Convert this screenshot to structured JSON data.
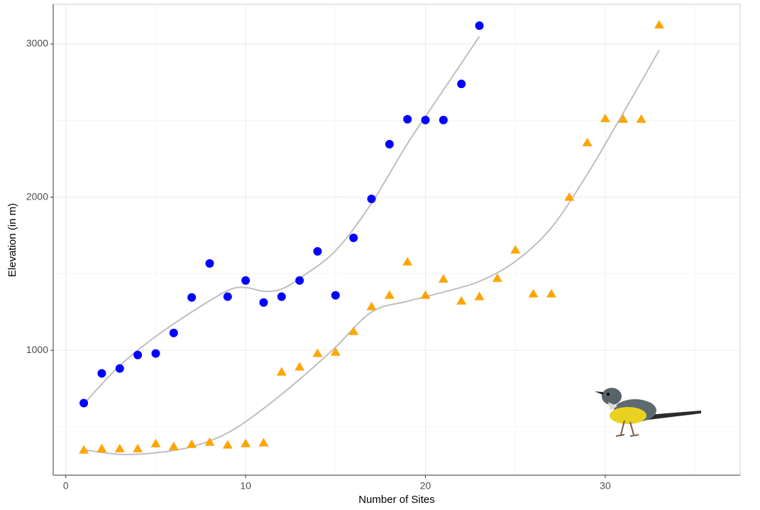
{
  "chart_data": {
    "type": "scatter",
    "x_label": "Number of Sites",
    "y_label": "Elevation (in m)",
    "xlim": [
      -0.7,
      37.5
    ],
    "ylim": [
      184,
      3260
    ],
    "xticks": [
      0,
      10,
      20,
      30
    ],
    "yticks": [
      1000,
      2000,
      3000
    ],
    "minor_xticks": [
      5,
      15,
      25,
      35
    ],
    "minor_yticks": [
      500,
      1500,
      2500
    ],
    "grid": true,
    "series": [
      {
        "color": "#0000ff",
        "marker": "circle",
        "x": [
          1,
          2,
          3,
          4,
          5,
          6,
          7,
          8,
          9,
          10,
          11,
          12,
          13,
          14,
          15,
          16,
          17,
          18,
          19,
          20,
          21,
          22,
          23
        ],
        "values": [
          655,
          849,
          881,
          969,
          979,
          1113,
          1345,
          1567,
          1350,
          1456,
          1312,
          1350,
          1456,
          1646,
          1359,
          1734,
          1989,
          2346,
          2509,
          2504,
          2504,
          2740,
          3120
        ],
        "trend": {
          "x": [
            1,
            3,
            5,
            7,
            9,
            10,
            11,
            12,
            13,
            15,
            17,
            19,
            21,
            23
          ],
          "values": [
            650,
            900,
            1090,
            1250,
            1390,
            1410,
            1385,
            1400,
            1470,
            1650,
            1960,
            2350,
            2700,
            3050
          ]
        }
      },
      {
        "color": "#ffa500",
        "marker": "triangle",
        "x": [
          1,
          2,
          3,
          4,
          5,
          6,
          7,
          8,
          9,
          10,
          11,
          12,
          13,
          14,
          15,
          16,
          17,
          18,
          19,
          20,
          21,
          22,
          23,
          24,
          25,
          26,
          27,
          28,
          29,
          30,
          31,
          32,
          33
        ],
        "values": [
          348,
          357,
          357,
          357,
          390,
          371,
          385,
          399,
          381,
          390,
          395,
          858,
          891,
          979,
          988,
          1123,
          1285,
          1359,
          1577,
          1359,
          1465,
          1322,
          1350,
          1470,
          1655,
          1368,
          1368,
          2000,
          2356,
          2513,
          2509,
          2509,
          3125
        ],
        "trend": {
          "x": [
            1,
            3,
            5,
            7,
            9,
            11,
            13,
            15,
            17,
            19,
            21,
            23,
            25,
            27,
            29,
            31,
            33
          ],
          "values": [
            350,
            320,
            330,
            370,
            460,
            620,
            810,
            1020,
            1250,
            1320,
            1380,
            1450,
            1580,
            1800,
            2150,
            2550,
            2960
          ]
        }
      }
    ]
  }
}
